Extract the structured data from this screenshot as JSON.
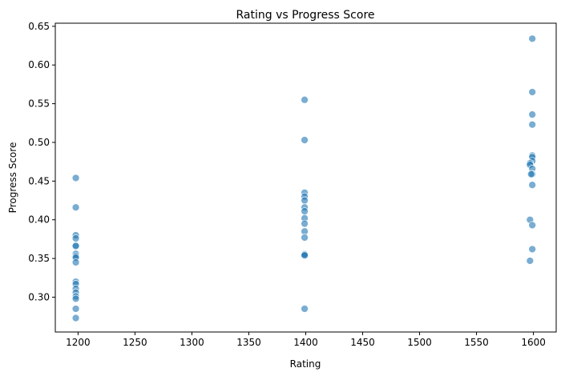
{
  "chart_data": {
    "type": "scatter",
    "title": "Rating vs Progress Score",
    "xlabel": "Rating",
    "ylabel": "Progress Score",
    "xlim": [
      1180,
      1620
    ],
    "ylim": [
      0.255,
      0.654
    ],
    "xticks": [
      1200,
      1250,
      1300,
      1350,
      1400,
      1450,
      1500,
      1550,
      1600
    ],
    "yticks": [
      0.3,
      0.35,
      0.4,
      0.45,
      0.5,
      0.55,
      0.6,
      0.65
    ],
    "grid": false,
    "point_color": "#1f77b4",
    "point_opacity": 0.6,
    "points": [
      {
        "x": 1198,
        "y": 0.454
      },
      {
        "x": 1198,
        "y": 0.416
      },
      {
        "x": 1198,
        "y": 0.38
      },
      {
        "x": 1198,
        "y": 0.376
      },
      {
        "x": 1198,
        "y": 0.367
      },
      {
        "x": 1198,
        "y": 0.366
      },
      {
        "x": 1198,
        "y": 0.356
      },
      {
        "x": 1198,
        "y": 0.353
      },
      {
        "x": 1198,
        "y": 0.351
      },
      {
        "x": 1198,
        "y": 0.345
      },
      {
        "x": 1198,
        "y": 0.32
      },
      {
        "x": 1198,
        "y": 0.317
      },
      {
        "x": 1198,
        "y": 0.311
      },
      {
        "x": 1198,
        "y": 0.306
      },
      {
        "x": 1198,
        "y": 0.301
      },
      {
        "x": 1198,
        "y": 0.298
      },
      {
        "x": 1198,
        "y": 0.285
      },
      {
        "x": 1198,
        "y": 0.273
      },
      {
        "x": 1399,
        "y": 0.555
      },
      {
        "x": 1399,
        "y": 0.503
      },
      {
        "x": 1399,
        "y": 0.435
      },
      {
        "x": 1399,
        "y": 0.43
      },
      {
        "x": 1399,
        "y": 0.425
      },
      {
        "x": 1399,
        "y": 0.416
      },
      {
        "x": 1399,
        "y": 0.411
      },
      {
        "x": 1399,
        "y": 0.402
      },
      {
        "x": 1399,
        "y": 0.395
      },
      {
        "x": 1399,
        "y": 0.385
      },
      {
        "x": 1399,
        "y": 0.377
      },
      {
        "x": 1399,
        "y": 0.356
      },
      {
        "x": 1399,
        "y": 0.355
      },
      {
        "x": 1399,
        "y": 0.354
      },
      {
        "x": 1399,
        "y": 0.285
      },
      {
        "x": 1599,
        "y": 0.634
      },
      {
        "x": 1599,
        "y": 0.565
      },
      {
        "x": 1599,
        "y": 0.536
      },
      {
        "x": 1599,
        "y": 0.523
      },
      {
        "x": 1599,
        "y": 0.483
      },
      {
        "x": 1599,
        "y": 0.481
      },
      {
        "x": 1599,
        "y": 0.476
      },
      {
        "x": 1597,
        "y": 0.473
      },
      {
        "x": 1597,
        "y": 0.471
      },
      {
        "x": 1599,
        "y": 0.466
      },
      {
        "x": 1599,
        "y": 0.459
      },
      {
        "x": 1598,
        "y": 0.459
      },
      {
        "x": 1599,
        "y": 0.445
      },
      {
        "x": 1597,
        "y": 0.4
      },
      {
        "x": 1599,
        "y": 0.393
      },
      {
        "x": 1599,
        "y": 0.362
      },
      {
        "x": 1597,
        "y": 0.347
      }
    ]
  }
}
